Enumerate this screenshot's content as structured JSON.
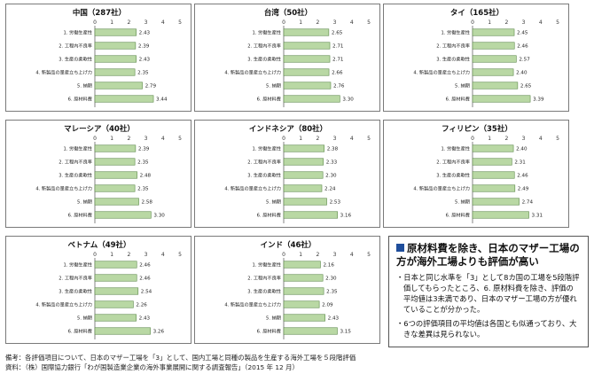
{
  "chart_data": [
    {
      "type": "bar",
      "title": "中国（287社）",
      "categories": [
        "1. 労働生産性",
        "2. 工程内不良率",
        "3. 生産の柔軟性",
        "4. 新製品の量産立ち上げ力",
        "5. 納期",
        "6. 原材料費"
      ],
      "values": [
        2.43,
        2.39,
        2.43,
        2.35,
        2.79,
        3.44
      ],
      "xlim": [
        0,
        5
      ],
      "ticks": [
        "0",
        "1",
        "2",
        "3",
        "4",
        "5"
      ]
    },
    {
      "type": "bar",
      "title": "台湾（50社）",
      "categories": [
        "1. 労働生産性",
        "2. 工程内不良率",
        "3. 生産の柔軟性",
        "4. 新製品の量産立ち上げ力",
        "5. 納期",
        "6. 原材料費"
      ],
      "values": [
        2.65,
        2.71,
        2.71,
        2.66,
        2.76,
        3.3
      ],
      "xlim": [
        0,
        5
      ],
      "ticks": [
        "0",
        "1",
        "2",
        "3",
        "4",
        "5"
      ]
    },
    {
      "type": "bar",
      "title": "タイ（165社）",
      "categories": [
        "1. 労働生産性",
        "2. 工程内不良率",
        "3. 生産の柔軟性",
        "4. 新製品の量産立ち上げ力",
        "5. 納期",
        "6. 原材料費"
      ],
      "values": [
        2.45,
        2.46,
        2.57,
        2.4,
        2.65,
        3.39
      ],
      "xlim": [
        0,
        5
      ],
      "ticks": [
        "0",
        "1",
        "2",
        "3",
        "4",
        "5"
      ]
    },
    {
      "type": "bar",
      "title": "マレーシア（40社）",
      "categories": [
        "1. 労働生産性",
        "2. 工程内不良率",
        "3. 生産の柔軟性",
        "4. 新製品の量産立ち上げ力",
        "5. 納期",
        "6. 原材料費"
      ],
      "values": [
        2.39,
        2.35,
        2.48,
        2.35,
        2.58,
        3.3
      ],
      "xlim": [
        0,
        5
      ],
      "ticks": [
        "0",
        "1",
        "2",
        "3",
        "4",
        "5"
      ]
    },
    {
      "type": "bar",
      "title": "インドネシア（80社）",
      "categories": [
        "1. 労働生産性",
        "2. 工程内不良率",
        "3. 生産の柔軟性",
        "4. 新製品の量産立ち上げ力",
        "5. 納期",
        "6. 原材料費"
      ],
      "values": [
        2.38,
        2.33,
        2.3,
        2.24,
        2.53,
        3.16
      ],
      "xlim": [
        0,
        5
      ],
      "ticks": [
        "0",
        "1",
        "2",
        "3",
        "4",
        "5"
      ]
    },
    {
      "type": "bar",
      "title": "フィリピン（35社）",
      "categories": [
        "1. 労働生産性",
        "2. 工程内不良率",
        "3. 生産の柔軟性",
        "4. 新製品の量産立ち上げ力",
        "5. 納期",
        "6. 原材料費"
      ],
      "values": [
        2.4,
        2.31,
        2.46,
        2.49,
        2.74,
        3.31
      ],
      "xlim": [
        0,
        5
      ],
      "ticks": [
        "0",
        "1",
        "2",
        "3",
        "4",
        "5"
      ]
    },
    {
      "type": "bar",
      "title": "ベトナム（49社）",
      "categories": [
        "1. 労働生産性",
        "2. 工程内不良率",
        "3. 生産の柔軟性",
        "4. 新製品の量産立ち上げ力",
        "5. 納期",
        "6. 原材料費"
      ],
      "values": [
        2.46,
        2.46,
        2.54,
        2.26,
        2.43,
        3.26
      ],
      "xlim": [
        0,
        5
      ],
      "ticks": [
        "0",
        "1",
        "2",
        "3",
        "4",
        "5"
      ]
    },
    {
      "type": "bar",
      "title": "インド（46社）",
      "categories": [
        "1. 労働生産性",
        "2. 工程内不良率",
        "3. 生産の柔軟性",
        "4. 新製品の量産立ち上げ力",
        "5. 納期",
        "6. 原材料費"
      ],
      "values": [
        2.16,
        2.3,
        2.35,
        2.09,
        2.43,
        3.15
      ],
      "xlim": [
        0,
        5
      ],
      "ticks": [
        "0",
        "1",
        "2",
        "3",
        "4",
        "5"
      ]
    }
  ],
  "colors": {
    "bar_fill": "#b9d8a4",
    "bar_stroke": "#5e8a4b",
    "note_square": "#1f4e9c"
  },
  "note": {
    "title": "原材料費を除き、日本のマザー工場の方が海外工場よりも評価が高い",
    "items": [
      "・日本と同じ水準を「3」として8カ国の工場を5段階評価してもらったところ、6. 原材料費を除き、評価の平均値は3未満であり、日本のマザー工場の方が優れていることが分かった。",
      "・6つの評価項目の平均値は各国とも似通っており、大きな差異は見られない。"
    ]
  },
  "footer": {
    "line1": "備考：各評価項目について、日本のマザー工場を「3」として、国内工場と同種の製品を生産する海外工場を５段階評価",
    "line2": "資料：（株）国際協力銀行「わが国製造業企業の海外事業展開に関する調査報告」（2015 年 12 月）"
  }
}
